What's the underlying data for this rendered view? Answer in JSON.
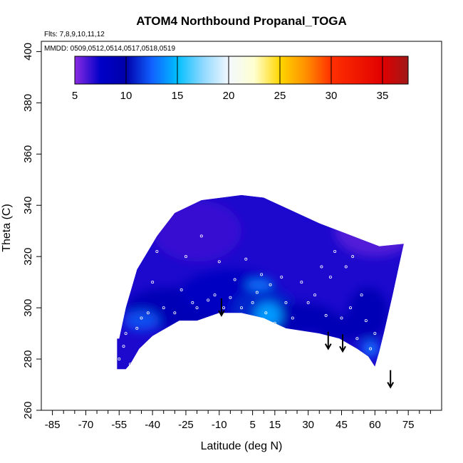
{
  "chart_data": {
    "type": "heatmap",
    "title": "ATOM4 Northbound Propanal_TOGA",
    "subtitle_flights": "Flts: 7,8,9,10,11,12",
    "subtitle_dates": "MMDD: 0509,0512,0514,0517,0518,0519",
    "xlabel": "Latitude (deg N)",
    "ylabel": "Theta (C)",
    "xlim": [
      -90,
      90
    ],
    "ylim": [
      260,
      404
    ],
    "x_ticks": [
      -85,
      -70,
      -55,
      -40,
      -25,
      -10,
      5,
      15,
      30,
      45,
      60,
      75
    ],
    "x_minor_ticks": [
      -80,
      -75,
      -65,
      -60,
      -50,
      -45,
      -35,
      -30,
      -20,
      -15,
      -5,
      0,
      10,
      20,
      25,
      35,
      40,
      50,
      55,
      65,
      70,
      80,
      85
    ],
    "y_ticks": [
      260,
      280,
      300,
      320,
      340,
      360,
      380,
      400
    ],
    "colorbar": {
      "min": 5,
      "max": 37.5,
      "ticks": [
        5,
        10,
        15,
        20,
        25,
        30,
        35
      ],
      "stops": [
        {
          "v": 5,
          "c": "#8a2be2"
        },
        {
          "v": 7.5,
          "c": "#0000c8"
        },
        {
          "v": 10,
          "c": "#0000aa"
        },
        {
          "v": 12.5,
          "c": "#1060ff"
        },
        {
          "v": 15,
          "c": "#00bfff"
        },
        {
          "v": 17.5,
          "c": "#8fd8ff"
        },
        {
          "v": 20,
          "c": "#f2f8ff"
        },
        {
          "v": 22.5,
          "c": "#ffffd0"
        },
        {
          "v": 25,
          "c": "#ffd700"
        },
        {
          "v": 27.5,
          "c": "#ff9000"
        },
        {
          "v": 30,
          "c": "#ff3000"
        },
        {
          "v": 35,
          "c": "#e00000"
        },
        {
          "v": 37.5,
          "c": "#a01818"
        }
      ]
    },
    "field_region": {
      "upper_boundary": [
        [
          -55,
          288
        ],
        [
          -52,
          300
        ],
        [
          -47,
          315
        ],
        [
          -38,
          328
        ],
        [
          -30,
          337
        ],
        [
          -18,
          342
        ],
        [
          0,
          344
        ],
        [
          10,
          343
        ],
        [
          20,
          339
        ],
        [
          35,
          333
        ],
        [
          50,
          328
        ],
        [
          62,
          324
        ],
        [
          73,
          325
        ]
      ],
      "lower_boundary": [
        [
          73,
          325
        ],
        [
          68,
          305
        ],
        [
          64,
          290
        ],
        [
          62,
          283
        ],
        [
          60,
          277
        ],
        [
          57,
          281
        ],
        [
          52,
          284
        ],
        [
          44,
          288
        ],
        [
          35,
          290
        ],
        [
          20,
          292
        ],
        [
          10,
          296
        ],
        [
          0,
          298
        ],
        [
          -10,
          298
        ],
        [
          -20,
          295
        ],
        [
          -28,
          295
        ],
        [
          -40,
          289
        ],
        [
          -46,
          284
        ],
        [
          -50,
          278
        ],
        [
          -52,
          276
        ],
        [
          -56,
          276
        ],
        [
          -56,
          288
        ]
      ]
    },
    "field_patches": [
      {
        "lat": -30,
        "theta": 300,
        "rx": 22,
        "ry": 8,
        "value": 9
      },
      {
        "lat": -5,
        "theta": 306,
        "rx": 22,
        "ry": 9,
        "value": 8
      },
      {
        "lat": 10,
        "theta": 300,
        "rx": 14,
        "ry": 7,
        "value": 11
      },
      {
        "lat": 25,
        "theta": 296,
        "rx": 18,
        "ry": 6,
        "value": 9
      },
      {
        "lat": 45,
        "theta": 292,
        "rx": 12,
        "ry": 5,
        "value": 9
      },
      {
        "lat": 57,
        "theta": 298,
        "rx": 9,
        "ry": 10,
        "value": 9
      },
      {
        "lat": 12,
        "theta": 297,
        "rx": 6,
        "ry": 5,
        "value": 14
      },
      {
        "lat": -45,
        "theta": 295,
        "rx": 8,
        "ry": 4,
        "value": 12
      },
      {
        "lat": 8,
        "theta": 309,
        "rx": 6,
        "ry": 2,
        "value": 13
      },
      {
        "lat": 58,
        "theta": 284,
        "rx": 4,
        "ry": 3,
        "value": 13
      },
      {
        "lat": 60,
        "theta": 330,
        "rx": 18,
        "ry": 10,
        "value": 6
      },
      {
        "lat": -20,
        "theta": 330,
        "rx": 20,
        "ry": 12,
        "value": 6.5
      }
    ],
    "sample_points": [
      [
        -55,
        280
      ],
      [
        -53,
        285
      ],
      [
        -52,
        290
      ],
      [
        -50,
        278
      ],
      [
        -47,
        292
      ],
      [
        -45,
        296
      ],
      [
        -42,
        298
      ],
      [
        -40,
        310
      ],
      [
        -38,
        322
      ],
      [
        -35,
        300
      ],
      [
        -30,
        298
      ],
      [
        -27,
        307
      ],
      [
        -25,
        320
      ],
      [
        -22,
        302
      ],
      [
        -20,
        300
      ],
      [
        -18,
        328
      ],
      [
        -15,
        303
      ],
      [
        -12,
        305
      ],
      [
        -10,
        318
      ],
      [
        -8,
        300
      ],
      [
        -5,
        304
      ],
      [
        -3,
        311
      ],
      [
        0,
        300
      ],
      [
        2,
        319
      ],
      [
        5,
        302
      ],
      [
        7,
        306
      ],
      [
        9,
        313
      ],
      [
        11,
        298
      ],
      [
        13,
        309
      ],
      [
        15,
        294
      ],
      [
        18,
        312
      ],
      [
        20,
        302
      ],
      [
        23,
        296
      ],
      [
        27,
        310
      ],
      [
        30,
        302
      ],
      [
        33,
        305
      ],
      [
        36,
        316
      ],
      [
        38,
        297
      ],
      [
        40,
        312
      ],
      [
        42,
        322
      ],
      [
        45,
        296
      ],
      [
        47,
        316
      ],
      [
        49,
        300
      ],
      [
        50,
        320
      ],
      [
        52,
        288
      ],
      [
        54,
        305
      ],
      [
        56,
        295
      ],
      [
        58,
        284
      ],
      [
        60,
        290
      ],
      [
        62,
        281
      ],
      [
        63,
        282
      ],
      [
        64,
        278
      ]
    ],
    "arrows": [
      {
        "lat": -9,
        "theta": 297
      },
      {
        "lat": 39,
        "theta": 284
      },
      {
        "lat": 45.5,
        "theta": 283
      },
      {
        "lat": 67,
        "theta": 269
      }
    ]
  }
}
